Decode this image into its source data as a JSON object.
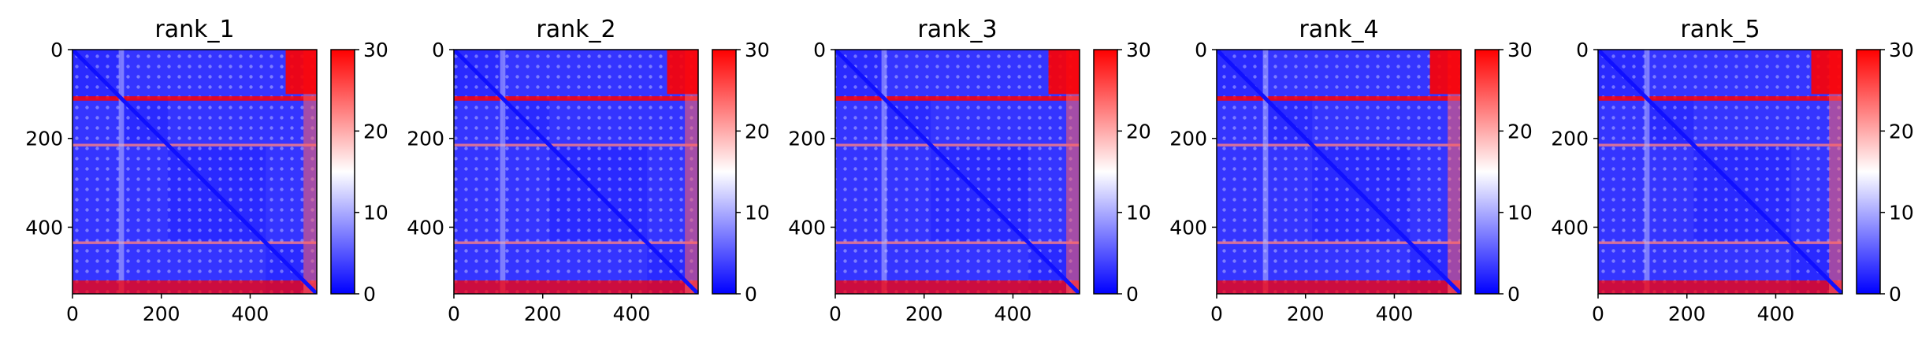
{
  "chart_data": [
    {
      "type": "heatmap",
      "title": "rank_1",
      "x_ticks": [
        0,
        200,
        400
      ],
      "y_ticks": [
        0,
        200,
        400
      ],
      "xlim": [
        0,
        550
      ],
      "ylim": [
        550,
        0
      ],
      "colorbar": {
        "ticks": [
          0,
          10,
          20,
          30
        ],
        "range": [
          0,
          30
        ],
        "colormap": "bwr"
      },
      "block_boundaries": [
        110,
        215,
        435
      ],
      "upper_right_red_block": [
        [
          0,
          100
        ],
        [
          480,
          550
        ]
      ]
    },
    {
      "type": "heatmap",
      "title": "rank_2",
      "x_ticks": [
        0,
        200,
        400
      ],
      "y_ticks": [
        0,
        200,
        400
      ],
      "xlim": [
        0,
        550
      ],
      "ylim": [
        550,
        0
      ],
      "colorbar": {
        "ticks": [
          0,
          10,
          20,
          30
        ],
        "range": [
          0,
          30
        ],
        "colormap": "bwr"
      },
      "block_boundaries": [
        110,
        215,
        435
      ],
      "upper_right_red_block": [
        [
          0,
          100
        ],
        [
          480,
          550
        ]
      ]
    },
    {
      "type": "heatmap",
      "title": "rank_3",
      "x_ticks": [
        0,
        200,
        400
      ],
      "y_ticks": [
        0,
        200,
        400
      ],
      "xlim": [
        0,
        550
      ],
      "ylim": [
        550,
        0
      ],
      "colorbar": {
        "ticks": [
          0,
          10,
          20,
          30
        ],
        "range": [
          0,
          30
        ],
        "colormap": "bwr"
      },
      "block_boundaries": [
        110,
        215,
        435
      ],
      "upper_right_red_block": [
        [
          0,
          100
        ],
        [
          480,
          550
        ]
      ]
    },
    {
      "type": "heatmap",
      "title": "rank_4",
      "x_ticks": [
        0,
        200,
        400
      ],
      "y_ticks": [
        0,
        200,
        400
      ],
      "xlim": [
        0,
        550
      ],
      "ylim": [
        550,
        0
      ],
      "colorbar": {
        "ticks": [
          0,
          10,
          20,
          30
        ],
        "range": [
          0,
          30
        ],
        "colormap": "bwr"
      },
      "block_boundaries": [
        110,
        215,
        435
      ],
      "upper_right_red_block": [
        [
          0,
          100
        ],
        [
          480,
          550
        ]
      ]
    },
    {
      "type": "heatmap",
      "title": "rank_5",
      "x_ticks": [
        0,
        200,
        400
      ],
      "y_ticks": [
        0,
        200,
        400
      ],
      "xlim": [
        0,
        550
      ],
      "ylim": [
        550,
        0
      ],
      "colorbar": {
        "ticks": [
          0,
          10,
          20,
          30
        ],
        "range": [
          0,
          30
        ],
        "colormap": "bwr"
      },
      "block_boundaries": [
        110,
        215,
        435
      ],
      "upper_right_red_block": [
        [
          0,
          100
        ],
        [
          480,
          550
        ]
      ]
    }
  ],
  "colors": {
    "low": "#0000ff",
    "mid": "#ffffff",
    "high": "#ff0000"
  }
}
